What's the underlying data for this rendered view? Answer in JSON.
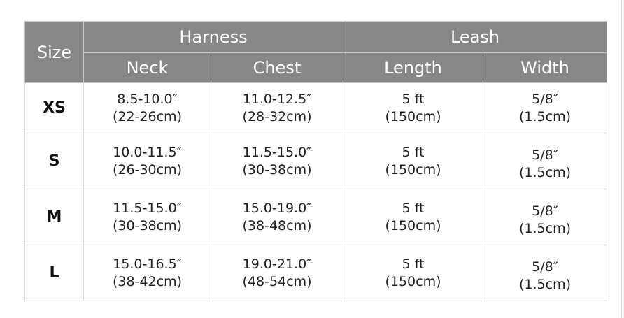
{
  "headers": {
    "size": "Size",
    "harness": "Harness",
    "leash": "Leash",
    "neck": "Neck",
    "chest": "Chest",
    "length": "Length",
    "width": "Width"
  },
  "rows": [
    {
      "size": "XS",
      "neck": [
        "8.5-10.0″",
        "(22-26cm)"
      ],
      "chest": [
        "11.0-12.5″",
        "(28-32cm)"
      ],
      "length": [
        "5 ft",
        "(150cm)"
      ],
      "width": [
        "5/8″",
        "(1.5cm)"
      ]
    },
    {
      "size": "S",
      "neck": [
        "10.0-11.5″",
        "(26-30cm)"
      ],
      "chest": [
        "11.5-15.0″",
        "(30-38cm)"
      ],
      "length": [
        "5 ft",
        "(150cm)"
      ],
      "width": [
        "5/8″",
        "(1.5cm)"
      ]
    },
    {
      "size": "M",
      "neck": [
        "11.5-15.0″",
        "(30-38cm)"
      ],
      "chest": [
        "15.0-19.0″",
        "(38-48cm)"
      ],
      "length": [
        "5 ft",
        "(150cm)"
      ],
      "width": [
        "5/8″",
        "(1.5cm)"
      ]
    },
    {
      "size": "L",
      "neck": [
        "15.0-16.5″",
        "(38-42cm)"
      ],
      "chest": [
        "19.0-21.0″",
        "(48-54cm)"
      ],
      "length": [
        "5 ft",
        "(150cm)"
      ],
      "width": [
        "5/8″",
        "(1.5cm)"
      ]
    }
  ],
  "colors": {
    "header_bg": "#878787",
    "header_text": "#ffffff"
  }
}
